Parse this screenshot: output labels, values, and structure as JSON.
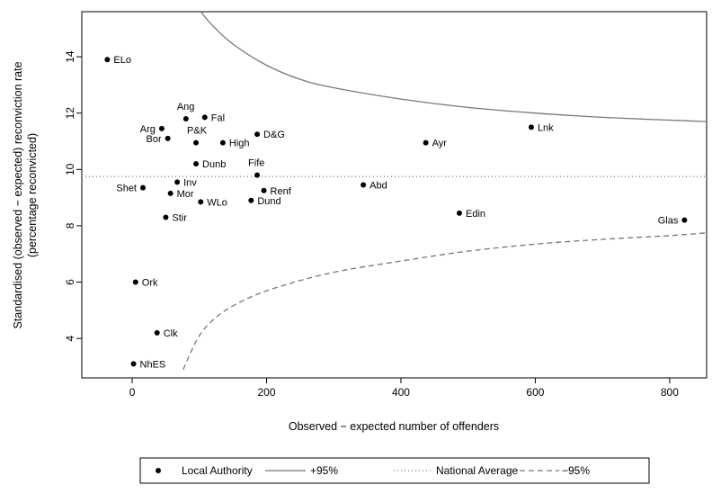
{
  "chart_data": {
    "type": "scatter",
    "xlabel": "Observed − expected number of offenders",
    "ylabel_line1": "Standardised (observed − expected) reconviction rate",
    "ylabel_line2": "(percentage reconvicted)",
    "xlim": [
      -75,
      855
    ],
    "ylim": [
      2.6,
      15.6
    ],
    "x_ticks": [
      0,
      200,
      400,
      600,
      800
    ],
    "y_ticks": [
      4,
      6,
      8,
      10,
      12,
      14
    ],
    "national_average": 9.75,
    "points": [
      {
        "label": "ELo",
        "x": -37,
        "y": 13.9
      },
      {
        "label": "Ang",
        "x": 80,
        "y": 11.8
      },
      {
        "label": "Fal",
        "x": 108,
        "y": 11.85
      },
      {
        "label": "Arg",
        "x": 44,
        "y": 11.45
      },
      {
        "label": "Bor",
        "x": 53,
        "y": 11.1
      },
      {
        "label": "P&K",
        "x": 95,
        "y": 10.95
      },
      {
        "label": "High",
        "x": 135,
        "y": 10.95
      },
      {
        "label": "D&G",
        "x": 186,
        "y": 11.25
      },
      {
        "label": "Dunb",
        "x": 95,
        "y": 10.2
      },
      {
        "label": "Fife",
        "x": 186,
        "y": 9.8
      },
      {
        "label": "Inv",
        "x": 67,
        "y": 9.55
      },
      {
        "label": "Shet",
        "x": 16,
        "y": 9.35
      },
      {
        "label": "Mor",
        "x": 57,
        "y": 9.15
      },
      {
        "label": "Renf",
        "x": 196,
        "y": 9.25
      },
      {
        "label": "WLo",
        "x": 102,
        "y": 8.85
      },
      {
        "label": "Dund",
        "x": 177,
        "y": 8.9
      },
      {
        "label": "Stir",
        "x": 50,
        "y": 8.3
      },
      {
        "label": "Ork",
        "x": 5,
        "y": 6.0
      },
      {
        "label": "Clk",
        "x": 37,
        "y": 4.2
      },
      {
        "label": "NhES",
        "x": 2,
        "y": 3.1
      },
      {
        "label": "Abd",
        "x": 344,
        "y": 9.45
      },
      {
        "label": "Ayr",
        "x": 437,
        "y": 10.95
      },
      {
        "label": "Lnk",
        "x": 594,
        "y": 11.5
      },
      {
        "label": "Edin",
        "x": 487,
        "y": 8.45
      },
      {
        "label": "Glas",
        "x": 822,
        "y": 8.2
      }
    ],
    "upper_95": [
      {
        "x": 102,
        "y": 15.6
      },
      {
        "x": 120,
        "y": 15.1
      },
      {
        "x": 150,
        "y": 14.45
      },
      {
        "x": 200,
        "y": 13.7
      },
      {
        "x": 250,
        "y": 13.2
      },
      {
        "x": 300,
        "y": 12.9
      },
      {
        "x": 400,
        "y": 12.5
      },
      {
        "x": 500,
        "y": 12.2
      },
      {
        "x": 600,
        "y": 12.0
      },
      {
        "x": 700,
        "y": 11.85
      },
      {
        "x": 800,
        "y": 11.75
      },
      {
        "x": 855,
        "y": 11.7
      }
    ],
    "lower_95": [
      {
        "x": 76,
        "y": 2.9
      },
      {
        "x": 100,
        "y": 4.1
      },
      {
        "x": 130,
        "y": 4.85
      },
      {
        "x": 170,
        "y": 5.4
      },
      {
        "x": 220,
        "y": 5.85
      },
      {
        "x": 300,
        "y": 6.35
      },
      {
        "x": 400,
        "y": 6.75
      },
      {
        "x": 500,
        "y": 7.1
      },
      {
        "x": 600,
        "y": 7.35
      },
      {
        "x": 700,
        "y": 7.52
      },
      {
        "x": 800,
        "y": 7.65
      },
      {
        "x": 855,
        "y": 7.75
      }
    ],
    "colors": {
      "points": "#000000",
      "upper": "#777777",
      "lower": "#777777",
      "average": "#777777"
    },
    "legend": {
      "placement": "bottom",
      "entries": [
        {
          "key": "points",
          "label": "Local Authority",
          "style": "point"
        },
        {
          "key": "upper",
          "label": "+95%",
          "style": "solid"
        },
        {
          "key": "average",
          "label": "National Average",
          "style": "dotted"
        },
        {
          "key": "lower",
          "label": "−95%",
          "style": "dashed"
        }
      ]
    }
  }
}
